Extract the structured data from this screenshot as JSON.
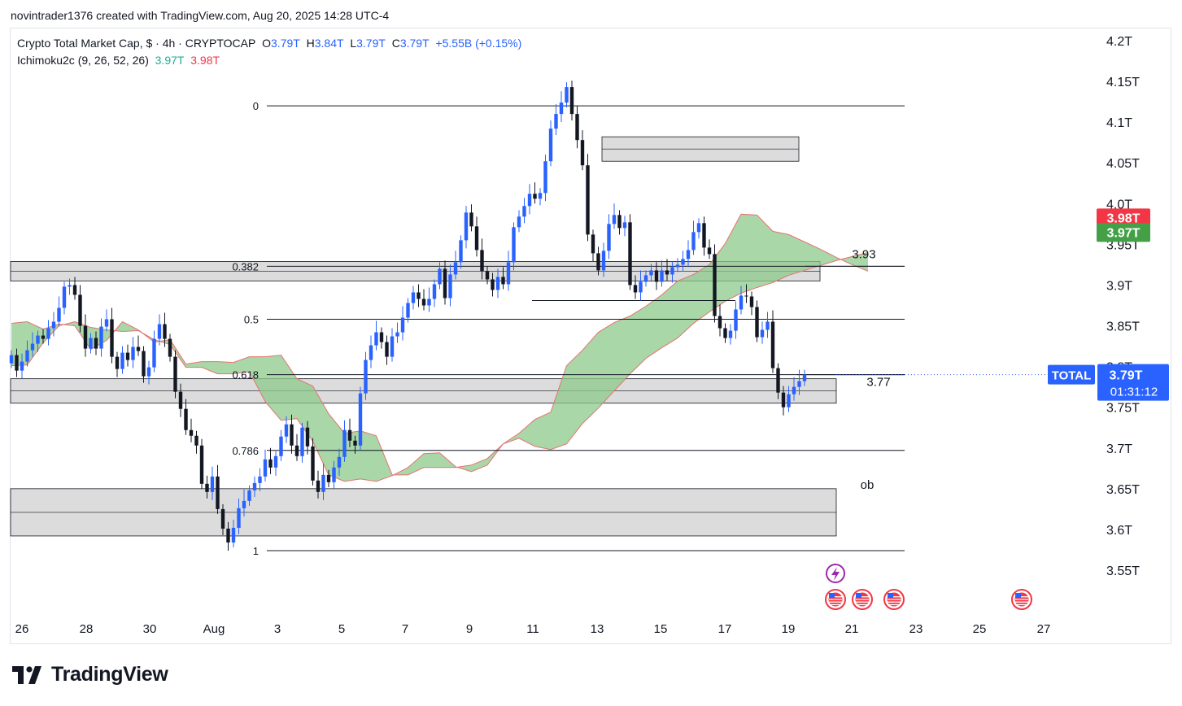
{
  "header": {
    "credit": "novintrader1376 created with TradingView.com, Aug 20, 2025 14:28 UTC-4"
  },
  "legend": {
    "symbol": "Crypto Total Market Cap, $ · 4h · CRYPTOCAP",
    "o_label": "O",
    "o_value": "3.79T",
    "h_label": "H",
    "h_value": "3.84T",
    "l_label": "L",
    "l_value": "3.79T",
    "c_label": "C",
    "c_value": "3.79T",
    "change": "+5.55B (+0.15%)",
    "indicator": "Ichimoku2c (9, 26, 52, 26)",
    "ind_value_1": "3.97T",
    "ind_value_2": "3.98T"
  },
  "branding": {
    "logo_text": "TradingView"
  },
  "colors": {
    "up": "#2962ff",
    "down": "#131722",
    "cloud": "#8cc98a",
    "cloud_edge": "#e57373",
    "zone_fill": "#d6d6d6",
    "price_tag": "#2962ff",
    "tag_red": "#f23645",
    "tag_green": "#43a047",
    "event_icon": "#f23645",
    "lightning_icon": "#9c27b0"
  },
  "chart_data": {
    "type": "candlestick",
    "title": "Crypto Total Market Cap",
    "timeframe": "4h",
    "exchange": "CRYPTOCAP",
    "ylim": [
      3.52,
      4.22
    ],
    "y_ticks": [
      "4.2T",
      "4.15T",
      "4.1T",
      "4.05T",
      "4.0T",
      "3.95T",
      "3.9T",
      "3.85T",
      "3.8T",
      "3.75T",
      "3.7T",
      "3.65T",
      "3.6T",
      "3.55T"
    ],
    "x_ticks": [
      "26",
      "28",
      "30",
      "Aug",
      "3",
      "5",
      "7",
      "9",
      "11",
      "13",
      "15",
      "17",
      "19",
      "21",
      "23",
      "25",
      "27"
    ],
    "price_tags": [
      {
        "label": "3.98T",
        "value": 3.98,
        "kind": "red"
      },
      {
        "label": "3.97T",
        "value": 3.97,
        "kind": "green"
      }
    ],
    "last_price": {
      "symbol": "TOTAL",
      "value": 3.79,
      "label": "3.79T",
      "countdown": "01:31:12"
    },
    "fib_levels": [
      {
        "label": "0",
        "value": 4.12
      },
      {
        "label": "0.382",
        "value": 3.923
      },
      {
        "label": "0.5",
        "value": 3.858
      },
      {
        "label": "0.618",
        "value": 3.79
      },
      {
        "label": "0.786",
        "value": 3.697
      },
      {
        "label": "1",
        "value": 3.574
      }
    ],
    "annotations": [
      {
        "text": "3.93",
        "value": 3.93
      },
      {
        "text": "3.77",
        "value": 3.78
      },
      {
        "text": "ob",
        "value": 3.655
      }
    ],
    "zones": [
      {
        "from": 3.929,
        "to": 3.905
      },
      {
        "from": 3.785,
        "to": 3.755
      },
      {
        "from": 3.65,
        "to": 3.592
      },
      {
        "from": 4.082,
        "to": 4.052
      }
    ],
    "points": [
      {
        "close": 3.814
      },
      {
        "close": 3.795
      },
      {
        "close": 3.806
      },
      {
        "close": 3.82
      },
      {
        "close": 3.828
      },
      {
        "close": 3.838
      },
      {
        "close": 3.834
      },
      {
        "close": 3.847
      },
      {
        "close": 3.855
      },
      {
        "close": 3.872
      },
      {
        "close": 3.898
      },
      {
        "close": 3.9
      },
      {
        "close": 3.888
      },
      {
        "close": 3.85
      },
      {
        "close": 3.822
      },
      {
        "close": 3.835
      },
      {
        "close": 3.822
      },
      {
        "close": 3.849
      },
      {
        "close": 3.858
      },
      {
        "close": 3.812
      },
      {
        "close": 3.797
      },
      {
        "close": 3.817
      },
      {
        "close": 3.808
      },
      {
        "close": 3.824
      },
      {
        "close": 3.819
      },
      {
        "close": 3.788
      },
      {
        "close": 3.799
      },
      {
        "close": 3.834
      },
      {
        "close": 3.852
      },
      {
        "close": 3.834
      },
      {
        "close": 3.812
      },
      {
        "close": 3.769
      },
      {
        "close": 3.748
      },
      {
        "close": 3.722
      },
      {
        "close": 3.715
      },
      {
        "close": 3.703
      },
      {
        "close": 3.656
      },
      {
        "close": 3.646
      },
      {
        "close": 3.665
      },
      {
        "close": 3.625
      },
      {
        "close": 3.601
      },
      {
        "close": 3.584
      },
      {
        "close": 3.602
      },
      {
        "close": 3.626
      },
      {
        "close": 3.635
      },
      {
        "close": 3.648
      },
      {
        "close": 3.657
      },
      {
        "close": 3.665
      },
      {
        "close": 3.686
      },
      {
        "close": 3.676
      },
      {
        "close": 3.69
      },
      {
        "close": 3.714
      },
      {
        "close": 3.729
      },
      {
        "close": 3.703
      },
      {
        "close": 3.69
      },
      {
        "close": 3.725
      },
      {
        "close": 3.702
      },
      {
        "close": 3.66
      },
      {
        "close": 3.646
      },
      {
        "close": 3.667
      },
      {
        "close": 3.658
      },
      {
        "close": 3.676
      },
      {
        "close": 3.689
      },
      {
        "close": 3.722
      },
      {
        "close": 3.709
      },
      {
        "close": 3.703
      },
      {
        "close": 3.767
      },
      {
        "close": 3.808
      },
      {
        "close": 3.826
      },
      {
        "close": 3.842
      },
      {
        "close": 3.83
      },
      {
        "close": 3.812
      },
      {
        "close": 3.837
      },
      {
        "close": 3.842
      },
      {
        "close": 3.86
      },
      {
        "close": 3.878
      },
      {
        "close": 3.891
      },
      {
        "close": 3.883
      },
      {
        "close": 3.875
      },
      {
        "close": 3.883
      },
      {
        "close": 3.901
      },
      {
        "close": 3.92
      },
      {
        "close": 3.884
      },
      {
        "close": 3.913
      },
      {
        "close": 3.928
      },
      {
        "close": 3.955
      },
      {
        "close": 3.989
      },
      {
        "close": 3.972
      },
      {
        "close": 3.943
      },
      {
        "close": 3.917
      },
      {
        "close": 3.907
      },
      {
        "close": 3.894
      },
      {
        "close": 3.91
      },
      {
        "close": 3.901
      },
      {
        "close": 3.928
      },
      {
        "close": 3.971
      },
      {
        "close": 3.984
      },
      {
        "close": 3.997
      },
      {
        "close": 4.012
      },
      {
        "close": 4.006
      },
      {
        "close": 4.013
      },
      {
        "close": 4.052
      },
      {
        "close": 4.092
      },
      {
        "close": 4.11
      },
      {
        "close": 4.124
      },
      {
        "close": 4.143
      },
      {
        "close": 4.11
      },
      {
        "close": 4.078
      },
      {
        "close": 4.047
      },
      {
        "close": 3.962
      },
      {
        "close": 3.939
      },
      {
        "close": 3.918
      },
      {
        "close": 3.942
      },
      {
        "close": 3.975
      },
      {
        "close": 3.986
      },
      {
        "close": 3.97
      },
      {
        "close": 3.977
      },
      {
        "close": 3.9
      },
      {
        "close": 3.891
      },
      {
        "close": 3.904
      },
      {
        "close": 3.912
      },
      {
        "close": 3.918
      },
      {
        "close": 3.904
      },
      {
        "close": 3.918
      },
      {
        "close": 3.913
      },
      {
        "close": 3.922
      },
      {
        "close": 3.925
      },
      {
        "close": 3.932
      },
      {
        "close": 3.943
      },
      {
        "close": 3.965
      },
      {
        "close": 3.976
      },
      {
        "close": 3.946
      },
      {
        "close": 3.938
      },
      {
        "close": 3.862
      },
      {
        "close": 3.847
      },
      {
        "close": 3.835
      },
      {
        "close": 3.844
      },
      {
        "close": 3.87
      },
      {
        "close": 3.887
      },
      {
        "close": 3.886
      },
      {
        "close": 3.873
      },
      {
        "close": 3.836
      },
      {
        "close": 3.845
      },
      {
        "close": 3.855
      },
      {
        "close": 3.798
      },
      {
        "close": 3.768
      },
      {
        "close": 3.75
      },
      {
        "close": 3.766
      },
      {
        "close": 3.775
      },
      {
        "close": 3.782
      },
      {
        "close": 3.79
      }
    ],
    "cloud": {
      "spans": [
        {
          "x_start": 0,
          "cloud_top": [
            3.853,
            3.855,
            3.846,
            3.852,
            3.85,
            3.821,
            3.832,
            3.855,
            3.845,
            3.83,
            3.833,
            3.803,
            3.806,
            3.806,
            3.805,
            3.812,
            3.812,
            3.814,
            3.785,
            3.776,
            3.742,
            3.718,
            3.721,
            3.715,
            3.667,
            3.667,
            3.676,
            3.676,
            3.676,
            3.679,
            3.687,
            3.705,
            3.718,
            3.735,
            3.744,
            3.801,
            3.82,
            3.842,
            3.854,
            3.862,
            3.874,
            3.888,
            3.905,
            3.913,
            3.925,
            3.951,
            3.987,
            3.986,
            3.966,
            3.962,
            3.953,
            3.944,
            3.934,
            3.925,
            3.917
          ],
          "cloud_bottom": [
            3.801,
            3.802,
            3.829,
            3.85,
            3.855,
            3.848,
            3.845,
            3.843,
            3.844,
            3.833,
            3.827,
            3.799,
            3.799,
            3.791,
            3.791,
            3.794,
            3.757,
            3.734,
            3.736,
            3.708,
            3.667,
            3.659,
            3.662,
            3.659,
            3.666,
            3.676,
            3.693,
            3.694,
            3.677,
            3.671,
            3.679,
            3.705,
            3.712,
            3.702,
            3.698,
            3.705,
            3.73,
            3.749,
            3.77,
            3.791,
            3.81,
            3.823,
            3.835,
            3.853,
            3.867,
            3.88,
            3.89,
            3.897,
            3.903,
            3.912,
            3.918,
            3.924,
            3.93,
            3.935,
            3.94
          ]
        }
      ]
    }
  }
}
